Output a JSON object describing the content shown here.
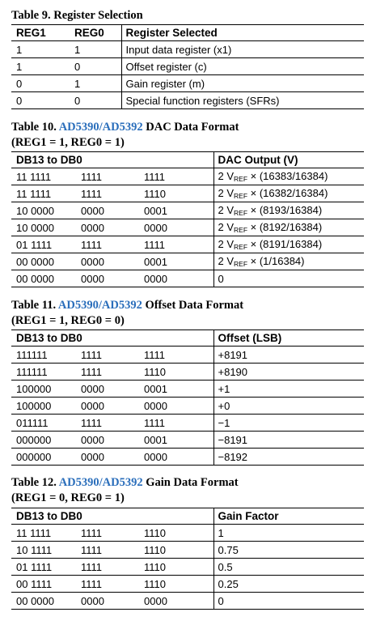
{
  "table9": {
    "caption": "Table 9. Register Selection",
    "headers": [
      "REG1",
      "REG0",
      "Register Selected"
    ],
    "rows": [
      [
        "1",
        "1",
        "Input data register (x1)"
      ],
      [
        "1",
        "0",
        "Offset register (c)"
      ],
      [
        "0",
        "1",
        "Gain register (m)"
      ],
      [
        "0",
        "0",
        "Special function registers (SFRs)"
      ]
    ]
  },
  "table10": {
    "caption_prefix": "Table 10.",
    "caption_link": "AD5390/AD5392",
    "caption_suffix": "DAC Data Format",
    "caption_line2": "(REG1 = 1, REG0 = 1)",
    "headers": [
      "DB13 to DB0",
      "DAC Output (V)"
    ],
    "rows": [
      [
        "11 1111",
        "1111",
        "1111",
        "(16383/16384)"
      ],
      [
        "11 1111",
        "1111",
        "1110",
        "(16382/16384)"
      ],
      [
        "10 0000",
        "0000",
        "0001",
        "(8193/16384)"
      ],
      [
        "10 0000",
        "0000",
        "0000",
        "(8192/16384)"
      ],
      [
        "01 1111",
        "1111",
        "1111",
        "(8191/16384)"
      ],
      [
        "00 0000",
        "0000",
        "0001",
        "(1/16384)"
      ],
      [
        "00 0000",
        "0000",
        "0000",
        "0"
      ]
    ],
    "vref_prefix": "2 V",
    "vref_sub": "REF",
    "vref_times": " × "
  },
  "table11": {
    "caption_prefix": "Table 11.",
    "caption_link": "AD5390/AD5392",
    "caption_suffix": "Offset Data Format",
    "caption_line2": "(REG1 = 1, REG0 = 0)",
    "headers": [
      "DB13 to DB0",
      "Offset (LSB)"
    ],
    "rows": [
      [
        "111111",
        "1111",
        "1111",
        "+8191"
      ],
      [
        "111111",
        "1111",
        "1110",
        "+8190"
      ],
      [
        "100000",
        "0000",
        "0001",
        "+1"
      ],
      [
        "100000",
        "0000",
        "0000",
        "+0"
      ],
      [
        "011111",
        "1111",
        "1111",
        "−1"
      ],
      [
        "000000",
        "0000",
        "0001",
        "−8191"
      ],
      [
        "000000",
        "0000",
        "0000",
        "−8192"
      ]
    ]
  },
  "table12": {
    "caption_prefix": "Table 12.",
    "caption_link": "AD5390/AD5392",
    "caption_suffix": "Gain Data Format",
    "caption_line2": "(REG1 = 0, REG0 = 1)",
    "headers": [
      "DB13 to DB0",
      "Gain Factor"
    ],
    "rows": [
      [
        "11 1111",
        "1111",
        "1110",
        "1"
      ],
      [
        "10 1111",
        "1111",
        "1110",
        "0.75"
      ],
      [
        "01 1111",
        "1111",
        "1110",
        "0.5"
      ],
      [
        "00 1111",
        "1111",
        "1110",
        "0.25"
      ],
      [
        "00 0000",
        "0000",
        "0000",
        "0"
      ]
    ]
  },
  "colors": {
    "link": "#2a6ebb",
    "text": "#000000",
    "rule": "#000000"
  }
}
